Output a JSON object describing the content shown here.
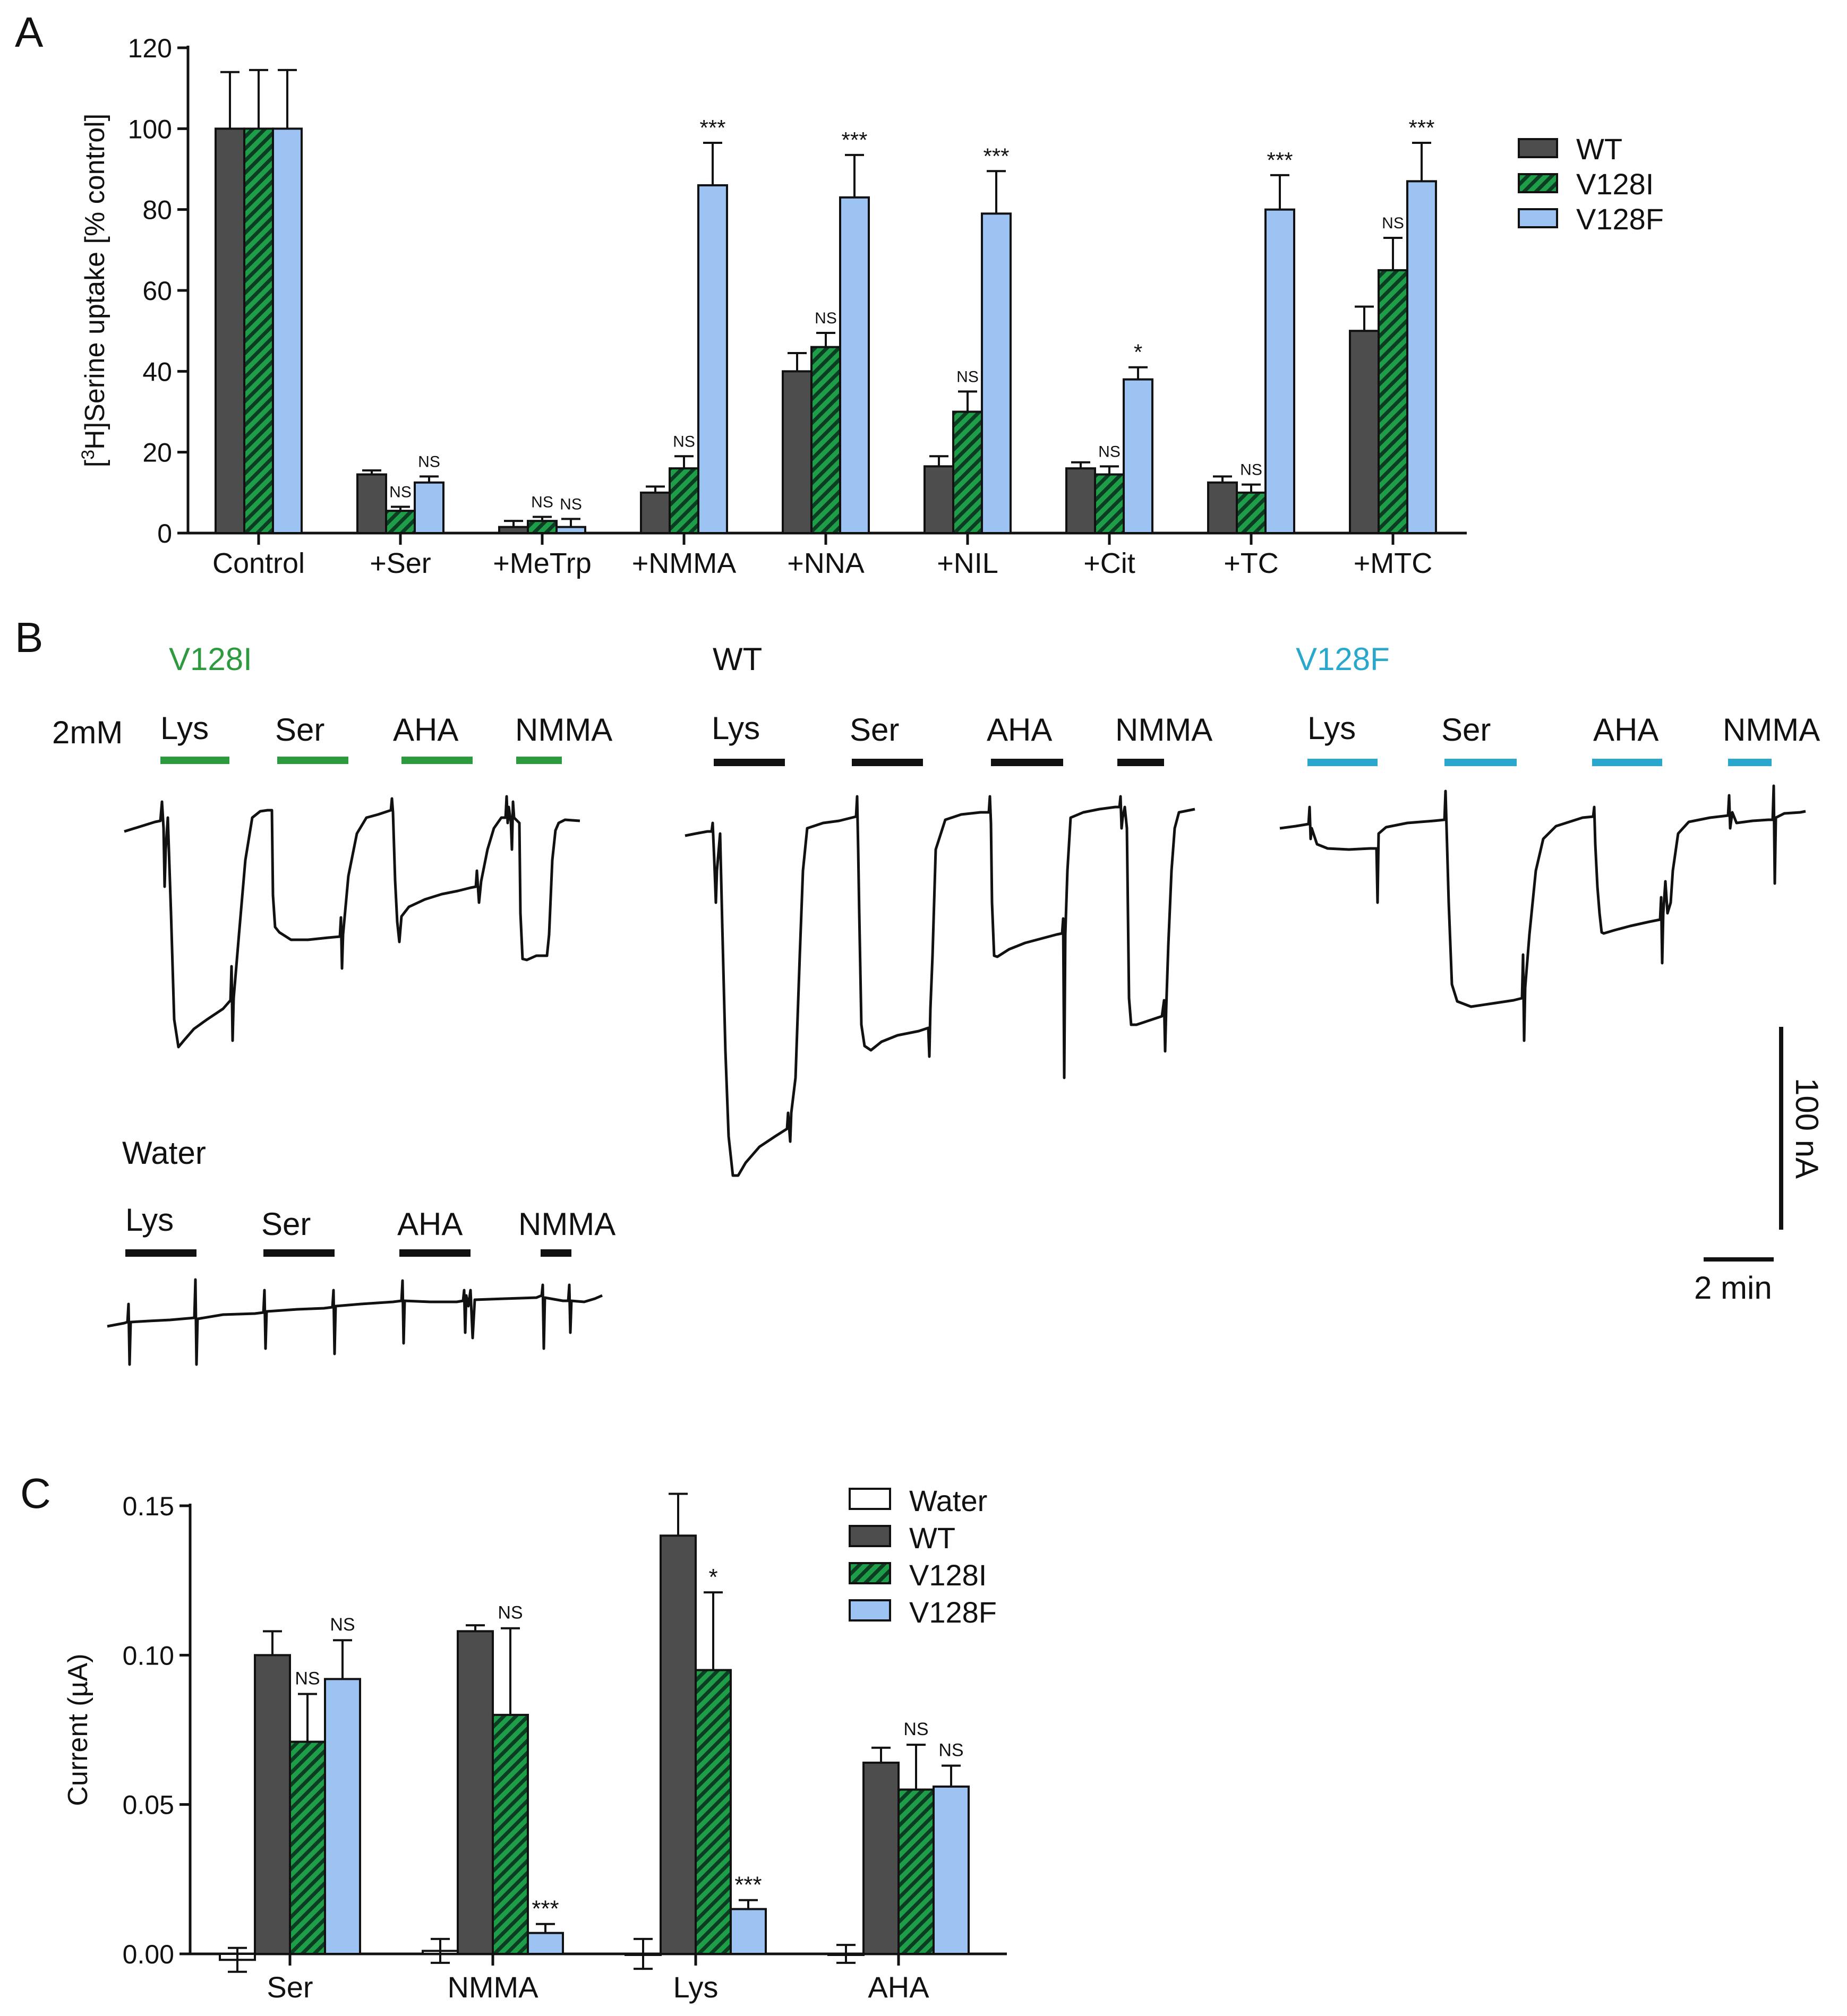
{
  "colors": {
    "wt": "#4d4d4d",
    "v128i": "#1f9e4a",
    "v128f": "#9dc3f2",
    "water": "#ffffff",
    "green_label": "#2e9a3e",
    "blue_label": "#2aa7cc",
    "axis": "#111111"
  },
  "panel_labels": {
    "a": "A",
    "b": "B",
    "c": "C"
  },
  "chart_data": [
    {
      "panel": "A",
      "type": "bar",
      "ylabel_prefix": "[",
      "ylabel_super": "3",
      "ylabel_rest": "H]Serine uptake [% control]",
      "ylim": [
        0,
        120
      ],
      "yticks": [
        0,
        20,
        40,
        60,
        80,
        100,
        120
      ],
      "categories": [
        "Control",
        "+Ser",
        "+MeTrp",
        "+NMMA",
        "+NNA",
        "+NIL",
        "+Cit",
        "+TC",
        "+MTC"
      ],
      "series": [
        {
          "name": "WT",
          "pattern": "solid",
          "values": [
            100,
            14.5,
            1.5,
            10,
            40,
            16.5,
            16,
            12.5,
            50
          ],
          "errors": [
            14,
            1,
            1.5,
            1.5,
            4.5,
            2.5,
            1.5,
            1.5,
            6
          ],
          "annotations": [
            "",
            "",
            "",
            "",
            "",
            "",
            "",
            "",
            ""
          ]
        },
        {
          "name": "V128I",
          "pattern": "hatch",
          "values": [
            100,
            5.5,
            3,
            16,
            46,
            30,
            14.5,
            10,
            65
          ],
          "errors": [
            14.5,
            1,
            1,
            3,
            3.5,
            5,
            2,
            2,
            8
          ],
          "annotations": [
            "",
            "NS",
            "NS",
            "NS",
            "NS",
            "NS",
            "NS",
            "NS",
            "NS"
          ]
        },
        {
          "name": "V128F",
          "pattern": "light",
          "values": [
            100,
            12.5,
            1.5,
            86,
            83,
            79,
            38,
            80,
            87
          ],
          "errors": [
            14.5,
            1.5,
            2,
            10.5,
            10.5,
            10.5,
            3,
            8.5,
            9.5
          ],
          "annotations": [
            "",
            "NS",
            "NS",
            "***",
            "***",
            "***",
            "*",
            "***",
            "***"
          ]
        }
      ],
      "legend": [
        "WT",
        "V128I",
        "V128F"
      ]
    },
    {
      "panel": "C",
      "type": "bar",
      "ylabel": "Current (µA)",
      "ylim": [
        0,
        0.15
      ],
      "yticks": [
        "0.00",
        "0.05",
        "0.10",
        "0.15"
      ],
      "categories": [
        "Ser",
        "NMMA",
        "Lys",
        "AHA"
      ],
      "series": [
        {
          "name": "Water",
          "pattern": "open",
          "values": [
            -0.002,
            0.001,
            0.0,
            0.0
          ],
          "errors": [
            0.004,
            0.004,
            0.005,
            0.003
          ],
          "annotations": [
            "",
            "",
            "",
            ""
          ]
        },
        {
          "name": "WT",
          "pattern": "solid",
          "values": [
            0.1,
            0.108,
            0.14,
            0.064
          ],
          "errors": [
            0.008,
            0.002,
            0.014,
            0.005
          ],
          "annotations": [
            "",
            "",
            "",
            ""
          ]
        },
        {
          "name": "V128I",
          "pattern": "hatch",
          "values": [
            0.071,
            0.08,
            0.095,
            0.055
          ],
          "errors": [
            0.016,
            0.029,
            0.026,
            0.015
          ],
          "annotations": [
            "NS",
            "NS",
            "*",
            "NS"
          ]
        },
        {
          "name": "V128F",
          "pattern": "light",
          "values": [
            0.092,
            0.007,
            0.015,
            0.056
          ],
          "errors": [
            0.013,
            0.003,
            0.003,
            0.007
          ],
          "annotations": [
            "NS",
            "***",
            "***",
            "NS"
          ]
        }
      ],
      "legend": [
        "Water",
        "WT",
        "V128I",
        "V128F"
      ]
    }
  ],
  "panel_b": {
    "concentration": "2mM",
    "groups": [
      {
        "title": "V128I",
        "color": "green",
        "substrates": [
          "Lys",
          "Ser",
          "AHA",
          "NMMA"
        ]
      },
      {
        "title": "WT",
        "color": "black",
        "substrates": [
          "Lys",
          "Ser",
          "AHA",
          "NMMA"
        ]
      },
      {
        "title": "V128F",
        "color": "blue",
        "substrates": [
          "Lys",
          "Ser",
          "AHA",
          "NMMA"
        ]
      },
      {
        "title": "Water",
        "color": "black",
        "substrates": [
          "Lys",
          "Ser",
          "AHA",
          "NMMA"
        ]
      }
    ],
    "scale_current": "100 nA",
    "scale_time": "2 min"
  }
}
